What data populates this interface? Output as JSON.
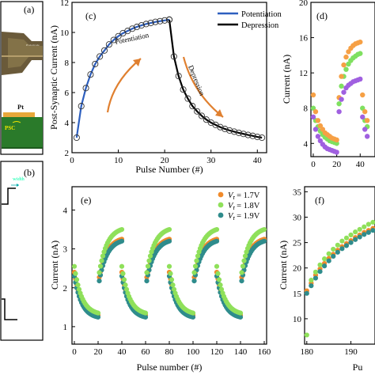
{
  "panels": {
    "a": {
      "label": "(a)",
      "texts": [
        "Pt",
        "PSC"
      ]
    },
    "b": {
      "label": "(b)",
      "texts": [
        "width"
      ]
    },
    "c": {
      "label": "(c)"
    },
    "d": {
      "label": "(d)"
    },
    "e": {
      "label": "(e)"
    },
    "f": {
      "label": "(f)"
    }
  },
  "colors": {
    "potentiation": "#2d5fbf",
    "depression": "#000000",
    "arrow": "#e08030",
    "vr17": "#f08a2a",
    "vr18": "#8fe05a",
    "vr19": "#2f8c8c",
    "d_green": "#7fe060",
    "d_orange": "#f6a045",
    "d_purple": "#a060e0"
  },
  "chart_data": [
    {
      "panel": "c",
      "type": "line",
      "xlabel": "Pulse Number (#)",
      "ylabel": "Post-Synaptic Current (nA)",
      "xlim": [
        0,
        42
      ],
      "ylim": [
        2,
        12
      ],
      "xticks": [
        "0",
        "10",
        "20",
        "30",
        "40"
      ],
      "yticks": [
        "2",
        "4",
        "6",
        "8",
        "10",
        "12"
      ],
      "legend": [
        "Potentiation",
        "Depression"
      ],
      "annotations": [
        "Potentiation",
        "Depression"
      ],
      "series": [
        {
          "name": "Potentiation",
          "x": [
            1,
            2,
            3,
            4,
            5,
            6,
            7,
            8,
            9,
            10,
            11,
            12,
            13,
            14,
            15,
            16,
            17,
            18,
            19,
            20,
            21
          ],
          "y": [
            3.0,
            5.1,
            6.3,
            7.2,
            7.9,
            8.4,
            8.8,
            9.2,
            9.5,
            9.75,
            9.95,
            10.1,
            10.25,
            10.37,
            10.47,
            10.56,
            10.63,
            10.7,
            10.75,
            10.8,
            10.85
          ]
        },
        {
          "name": "Depression",
          "x": [
            21,
            22,
            23,
            24,
            25,
            26,
            27,
            28,
            29,
            30,
            31,
            32,
            33,
            34,
            35,
            36,
            37,
            38,
            39,
            40,
            41
          ],
          "y": [
            10.85,
            8.4,
            7.1,
            6.2,
            5.6,
            5.1,
            4.75,
            4.45,
            4.2,
            4.0,
            3.85,
            3.7,
            3.58,
            3.48,
            3.4,
            3.32,
            3.25,
            3.18,
            3.12,
            3.05,
            3.0
          ]
        }
      ]
    },
    {
      "panel": "d",
      "type": "scatter",
      "ylabel": "Current (nA)",
      "ylim": [
        2.5,
        20
      ],
      "xticks": [
        "0",
        "20",
        "40"
      ],
      "yticks": [
        "4",
        "8",
        "12",
        "16",
        "20"
      ],
      "series": [
        {
          "color": "green",
          "x": [
            0,
            2,
            4,
            6,
            8,
            10,
            12,
            14,
            16,
            18,
            20,
            22,
            24,
            26,
            28,
            30,
            32,
            34,
            36,
            38,
            40,
            42,
            44,
            46
          ],
          "y": [
            8.0,
            6.6,
            5.9,
            5.4,
            5.0,
            4.7,
            4.5,
            4.3,
            4.2,
            4.1,
            4.0,
            8.5,
            10.5,
            11.6,
            12.4,
            13.0,
            13.4,
            13.7,
            13.9,
            14.1,
            14.2,
            8.0,
            6.6,
            5.9
          ]
        },
        {
          "color": "orange",
          "x": [
            0,
            2,
            4,
            6,
            8,
            10,
            12,
            14,
            16,
            18,
            20,
            22,
            24,
            26,
            28,
            30,
            32,
            34,
            36,
            38,
            40,
            42,
            44,
            46
          ],
          "y": [
            9.5,
            7.6,
            6.6,
            6.0,
            5.6,
            5.2,
            5.0,
            4.8,
            4.6,
            4.5,
            4.4,
            9.2,
            11.6,
            12.9,
            13.8,
            14.4,
            14.8,
            15.1,
            15.3,
            15.4,
            15.5,
            9.5,
            7.6,
            6.6
          ]
        },
        {
          "color": "purple",
          "x": [
            0,
            2,
            4,
            6,
            8,
            10,
            12,
            14,
            16,
            18,
            20,
            22,
            24,
            26,
            28,
            30,
            32,
            34,
            36,
            38,
            40,
            42,
            44,
            46
          ],
          "y": [
            7.0,
            5.6,
            4.8,
            4.3,
            3.9,
            3.6,
            3.4,
            3.3,
            3.2,
            3.1,
            3.0,
            7.6,
            9.0,
            9.8,
            10.3,
            10.6,
            10.8,
            11.0,
            11.1,
            11.2,
            11.3,
            7.0,
            5.6,
            4.8
          ]
        }
      ]
    },
    {
      "panel": "e",
      "type": "scatter",
      "xlabel": "Pulse number (#)",
      "ylabel": "Current (nA)",
      "xlim": [
        -2,
        162
      ],
      "ylim": [
        0.55,
        4.6
      ],
      "xticks": [
        "0",
        "20",
        "40",
        "60",
        "80",
        "100",
        "120",
        "140",
        "160"
      ],
      "yticks": [
        "1",
        "2",
        "3",
        "4"
      ],
      "legend": [
        "V",
        "V",
        "V"
      ],
      "legend_values": [
        "= 1.7V",
        "= 1.8V",
        "= 1.9V"
      ],
      "legend_subscript": "r",
      "series": [
        {
          "name": "Vr = 1.7V",
          "color": "vr17",
          "dep_start": 2.4,
          "dep_end": 1.25,
          "pot_start": 2.1,
          "pot_end": 3.25
        },
        {
          "name": "Vr = 1.8V",
          "color": "vr18",
          "dep_start": 2.55,
          "dep_end": 1.3,
          "pot_start": 2.2,
          "pot_end": 3.5
        },
        {
          "name": "Vr = 1.9V",
          "color": "vr19",
          "dep_start": 2.3,
          "dep_end": 1.2,
          "pot_start": 2.0,
          "pot_end": 3.2
        }
      ]
    },
    {
      "panel": "f",
      "type": "scatter",
      "xlabel": "Pu",
      "ylabel": "Current (nA)",
      "xlim": [
        179.5,
        196
      ],
      "ylim": [
        5,
        36
      ],
      "xticks": [
        "180",
        "190"
      ],
      "yticks": [
        "10",
        "15",
        "20",
        "25",
        "30",
        "35"
      ],
      "series": [
        {
          "color": "orange",
          "x": [
            180,
            181,
            182,
            183,
            184,
            185,
            186,
            187,
            188,
            189,
            190,
            191,
            192,
            193,
            194,
            195
          ],
          "y": [
            15.5,
            17.0,
            18.6,
            19.8,
            20.9,
            21.9,
            22.7,
            23.5,
            24.2,
            24.8,
            25.4,
            26.0,
            26.5,
            27.0,
            27.4,
            27.8
          ]
        },
        {
          "color": "green",
          "x": [
            180,
            181,
            182,
            183,
            184,
            185,
            186,
            187,
            188,
            189,
            190,
            191,
            192,
            193,
            194,
            195
          ],
          "y": [
            6.8,
            17.6,
            19.2,
            20.6,
            21.8,
            22.8,
            23.7,
            24.5,
            25.3,
            25.9,
            26.5,
            27.1,
            27.6,
            28.1,
            28.6,
            29.0
          ]
        },
        {
          "color": "teal",
          "x": [
            180,
            181,
            182,
            183,
            184,
            185,
            186,
            187,
            188,
            189,
            190,
            191,
            192,
            193,
            194,
            195
          ],
          "y": [
            15.0,
            16.5,
            18.0,
            19.3,
            20.4,
            21.4,
            22.3,
            23.1,
            23.8,
            24.4,
            25.0,
            25.6,
            26.1,
            26.6,
            27.0,
            27.4
          ]
        }
      ]
    }
  ]
}
